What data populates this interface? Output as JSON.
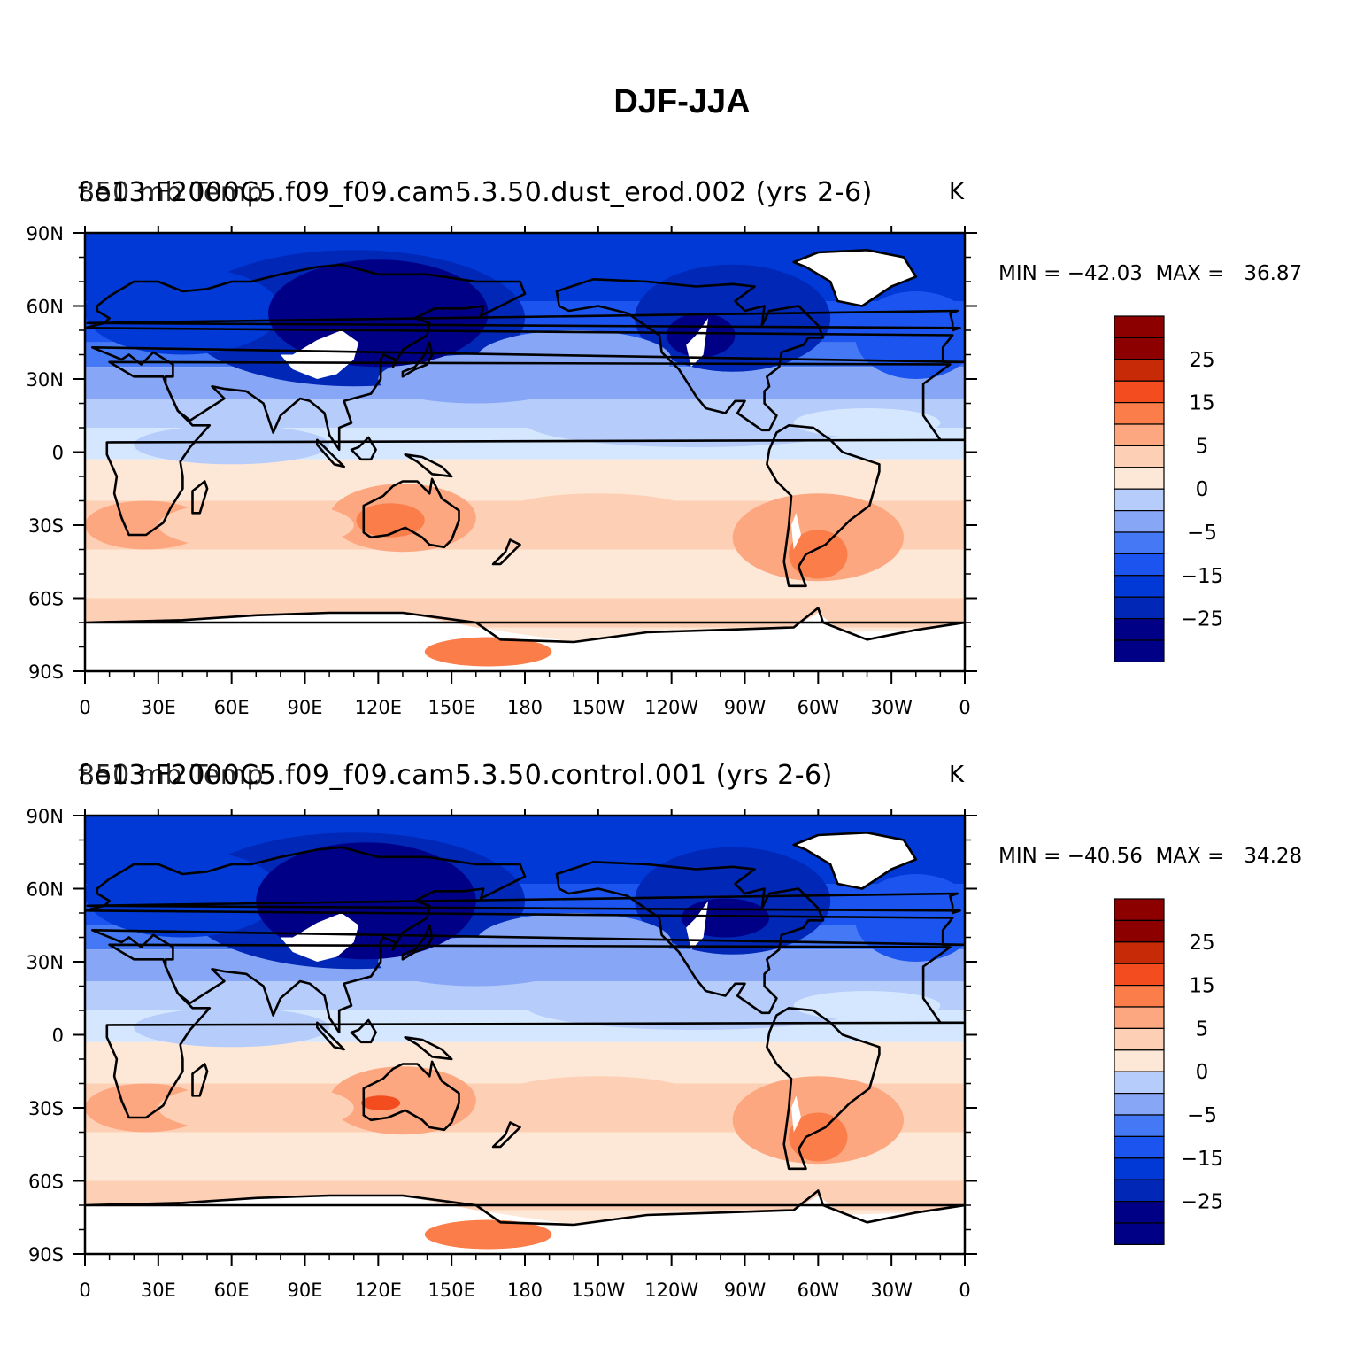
{
  "title": "DJF-JJA",
  "colors": {
    "levels": [
      "#000087",
      "#0027b6",
      "#0039d6",
      "#1c54f0",
      "#4478f4",
      "#87a6f5",
      "#b6ccfa",
      "#d5e7fe",
      "#fde8d8",
      "#fdcfb4",
      "#fca780",
      "#fa7d4a",
      "#f34d1f",
      "#c72a07",
      "#8c0000"
    ],
    "coast": "#000000",
    "missing": "#ffffff"
  },
  "panels": [
    {
      "title": "f.e13.F2000C5.f09_f09.cam5.3.50.dust_erod.002 (yrs 2-6)",
      "title_overlay": "850 mb Temp",
      "units": "K",
      "minmax": "MIN = −42.03  MAX =   36.87",
      "x_ticks": [
        "0",
        "30E",
        "60E",
        "90E",
        "120E",
        "150E",
        "180",
        "150W",
        "120W",
        "90W",
        "60W",
        "30W",
        "0"
      ],
      "y_ticks": [
        "90N",
        "60N",
        "30N",
        "0",
        "30S",
        "60S",
        "90S"
      ],
      "colorbar_labels": [
        "25",
        "15",
        "5",
        "0",
        "−5",
        "−15",
        "−25"
      ]
    },
    {
      "title": "f.e13.F2000C5.f09_f09.cam5.3.50.control.001 (yrs 2-6)",
      "title_overlay": "850 mb Temp",
      "units": "K",
      "minmax": "MIN = −40.56  MAX =   34.28",
      "x_ticks": [
        "0",
        "30E",
        "60E",
        "90E",
        "120E",
        "150E",
        "180",
        "150W",
        "120W",
        "90W",
        "60W",
        "30W",
        "0"
      ],
      "y_ticks": [
        "90N",
        "60N",
        "30N",
        "0",
        "30S",
        "60S",
        "90S"
      ],
      "colorbar_labels": [
        "25",
        "15",
        "5",
        "0",
        "−5",
        "−15",
        "−25"
      ]
    }
  ]
}
